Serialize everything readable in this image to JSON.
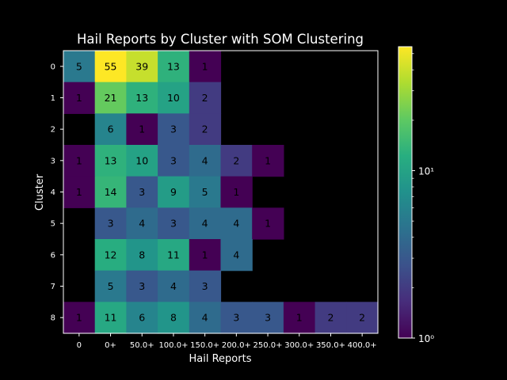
{
  "chart_data": {
    "type": "heatmap",
    "title": "Hail Reports by Cluster with SOM Clustering",
    "xlabel": "Hail Reports",
    "ylabel": "Cluster",
    "x_categories": [
      "0",
      "0+",
      "50.0+",
      "100.0+",
      "150.0+",
      "200.0+",
      "250.0+",
      "300.0+",
      "350.0+",
      "400.0+"
    ],
    "y_categories": [
      "0",
      "1",
      "2",
      "3",
      "4",
      "5",
      "6",
      "7",
      "8"
    ],
    "values": [
      [
        5,
        55,
        39,
        13,
        1,
        null,
        null,
        null,
        null,
        null
      ],
      [
        1,
        21,
        13,
        10,
        2,
        null,
        null,
        null,
        null,
        null
      ],
      [
        null,
        6,
        1,
        3,
        2,
        null,
        null,
        null,
        null,
        null
      ],
      [
        1,
        13,
        10,
        3,
        4,
        2,
        1,
        null,
        null,
        null
      ],
      [
        1,
        14,
        3,
        9,
        5,
        1,
        null,
        null,
        null,
        null
      ],
      [
        null,
        3,
        4,
        3,
        4,
        4,
        1,
        null,
        null,
        null
      ],
      [
        null,
        12,
        8,
        11,
        1,
        4,
        null,
        null,
        null,
        null
      ],
      [
        null,
        5,
        3,
        4,
        3,
        null,
        null,
        null,
        null,
        null
      ],
      [
        1,
        11,
        6,
        8,
        4,
        3,
        3,
        1,
        2,
        2
      ]
    ],
    "colormap": "viridis",
    "color_scale": "log",
    "color_range": [
      1,
      55
    ],
    "colorbar_ticks": [
      {
        "value": 1,
        "label": "10⁰"
      },
      {
        "value": 10,
        "label": "10¹"
      }
    ],
    "background_color": "#000000",
    "grid": false
  }
}
